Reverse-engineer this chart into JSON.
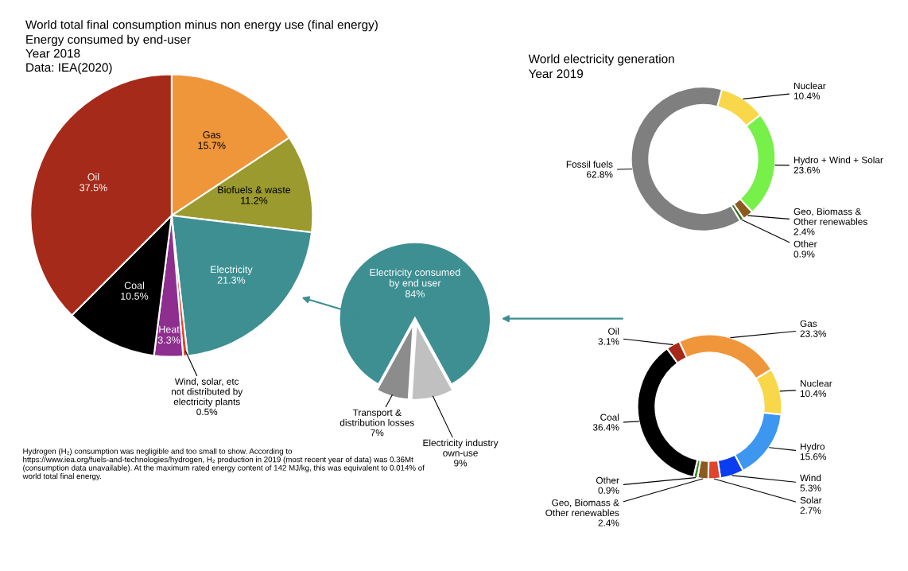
{
  "chart_data": [
    {
      "type": "pie",
      "title": "World total final consumption minus non energy use (final energy)",
      "subtitle": "Energy consumed by end-user\nYear 2018\nData: IEA(2020)",
      "annotations": [
        "Hydrogen (H₂) consumption was negligible and too small to show. According to https://www.iea.org/fuels-and-technologies/hydrogen, H₂ production in 2019 (most recent year of data) was 0.36Mt (consumption data unavailable). At the maximum rated energy content of 142 MJ/kg, this was equivalent to 0.014% of world total final energy."
      ],
      "categories": [
        "Gas",
        "Biofuels & waste",
        "Electricity",
        "Wind, solar, etc\nnot distributed by\nelectricity plants",
        "Heat",
        "Coal",
        "Oil"
      ],
      "values": [
        15.7,
        11.2,
        21.3,
        0.5,
        3.3,
        10.5,
        37.5
      ],
      "colors": [
        "#f0963a",
        "#9a9a2e",
        "#3d8f92",
        "#e0442a",
        "#8e2e8e",
        "#000000",
        "#a52a1a"
      ],
      "value_labels": [
        "15.7%",
        "11.2%",
        "21.3%",
        "0.5%",
        "3.3%",
        "10.5%",
        "37.5%"
      ]
    },
    {
      "type": "pie",
      "categories": [
        "Electricity consumed\nby end user",
        "Electricity industry\nown-use",
        "Transport &\ndistribution losses"
      ],
      "values": [
        84,
        9,
        7
      ],
      "colors": [
        "#3d8f92",
        "#c0c0c0",
        "#8c8c8c"
      ],
      "value_labels": [
        "84%",
        "9%",
        "7%"
      ]
    },
    {
      "type": "donut",
      "title": "World electricity generation",
      "subtitle": "Year 2019",
      "categories": [
        "Nuclear",
        "Hydro + Wind + Solar",
        "Geo, Biomass &\nOther renewables",
        "Other",
        "Fossil fuels"
      ],
      "values": [
        10.4,
        23.6,
        2.4,
        0.9,
        62.8
      ],
      "colors": [
        "#f8d74a",
        "#77f04a",
        "#8b5a1e",
        "#3a6e2a",
        "#7f7f7f"
      ],
      "value_labels": [
        "10.4%",
        "23.6%",
        "2.4%",
        "0.9%",
        "62.8%"
      ]
    },
    {
      "type": "donut",
      "categories": [
        "Gas",
        "Nuclear",
        "Hydro",
        "Wind",
        "Solar",
        "Geo, Biomass &\nOther renewables",
        "Other",
        "Coal",
        "Oil"
      ],
      "values": [
        23.3,
        10.4,
        15.6,
        5.3,
        2.7,
        2.4,
        0.9,
        36.4,
        3.1
      ],
      "colors": [
        "#f0963a",
        "#f8d74a",
        "#3d96f0",
        "#0a3cf0",
        "#e0442a",
        "#8b5a1e",
        "#3a8e2a",
        "#000000",
        "#a52a1a"
      ],
      "value_labels": [
        "23.3%",
        "10.4%",
        "15.6%",
        "5.3%",
        "2.7%",
        "2.4%",
        "0.9%",
        "36.4%",
        "3.1%"
      ]
    }
  ]
}
